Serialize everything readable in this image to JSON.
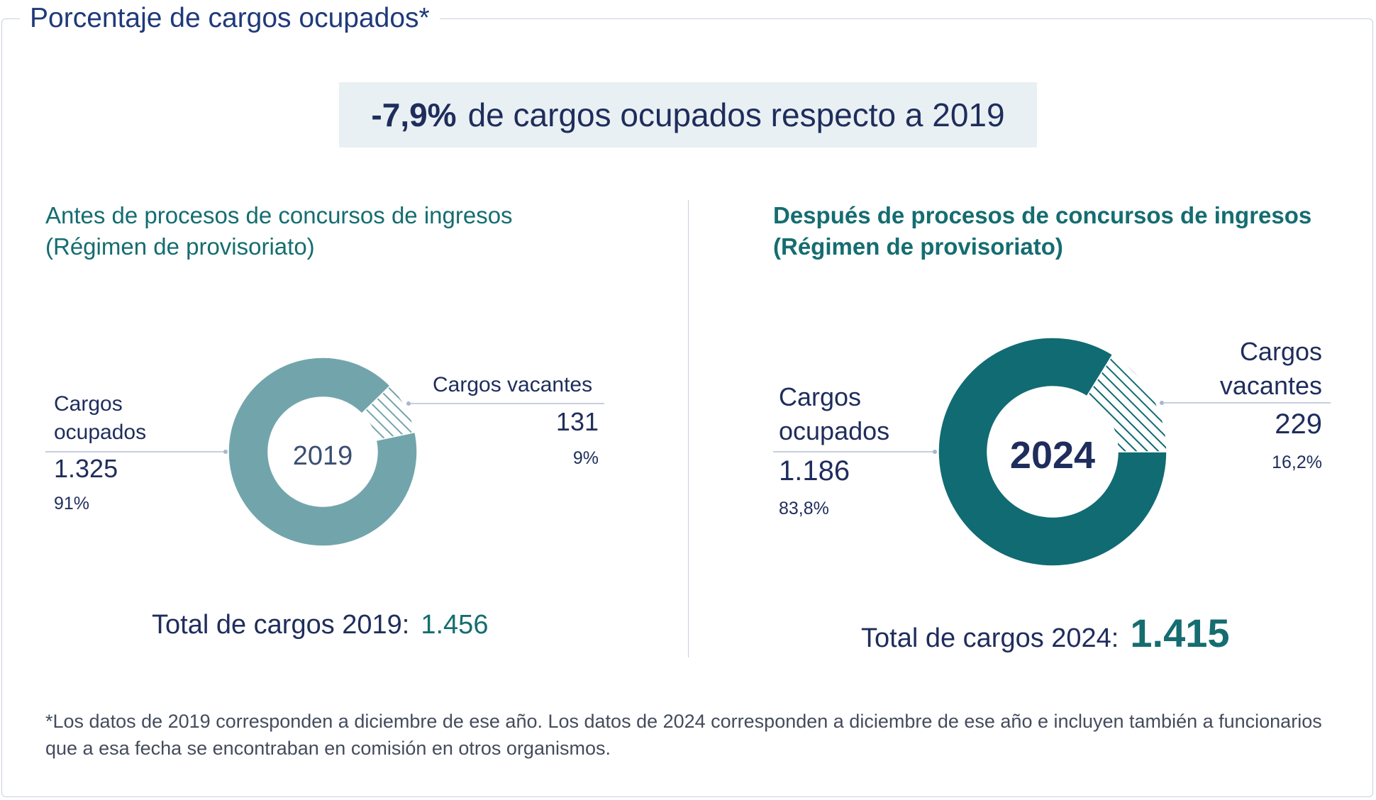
{
  "title": "Porcentaje de cargos ocupados*",
  "headline": {
    "value": "-7,9%",
    "text": "de cargos ocupados respecto a 2019"
  },
  "colors": {
    "ocupados_2019": "#72a5ab",
    "ocupados_2024": "#116b72",
    "label": "#1f2d5c",
    "accent": "#156d70"
  },
  "chart_data": [
    {
      "type": "pie",
      "subtitle_line1": "Antes de procesos de concursos de ingresos",
      "subtitle_line2": "(Régimen de provisoriato)",
      "center_label": "2019",
      "categories": [
        "Cargos ocupados",
        "Cargos vacantes"
      ],
      "values": [
        1325,
        131
      ],
      "percents": [
        91,
        9
      ],
      "labels": {
        "ocupados_line1": "Cargos",
        "ocupados_line2": "ocupados",
        "ocupados_value": "1.325",
        "ocupados_pct": "91%",
        "vacantes_line1": "Cargos vacantes",
        "vacantes_value": "131",
        "vacantes_pct": "9%"
      },
      "total_label": "Total de cargos 2019:",
      "total_value": "1.456"
    },
    {
      "type": "pie",
      "subtitle_line1": "Después de procesos de concursos de ingresos",
      "subtitle_line2": "(Régimen de provisoriato)",
      "center_label": "2024",
      "categories": [
        "Cargos ocupados",
        "Cargos vacantes"
      ],
      "values": [
        1186,
        229
      ],
      "percents": [
        83.8,
        16.2
      ],
      "labels": {
        "ocupados_line1": "Cargos",
        "ocupados_line2": "ocupados",
        "ocupados_value": "1.186",
        "ocupados_pct": "83,8%",
        "vacantes_line1": "Cargos",
        "vacantes_line2": "vacantes",
        "vacantes_value": "229",
        "vacantes_pct": "16,2%"
      },
      "total_label": "Total de cargos 2024:",
      "total_value": "1.415"
    }
  ],
  "footnote": "*Los datos de 2019 corresponden a diciembre de ese año. Los datos de 2024 corresponden a diciembre de ese año e incluyen también a funcionarios que a esa fecha se encontraban en comisión en otros organismos."
}
